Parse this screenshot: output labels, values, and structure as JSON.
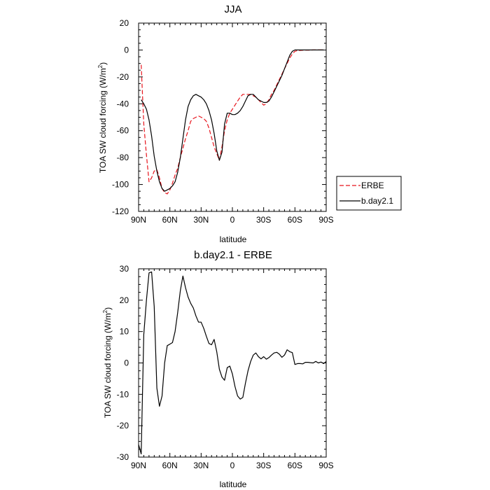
{
  "chart_data": [
    {
      "type": "line",
      "title": "JJA",
      "xlabel": "latitude",
      "ylabel": "TOA SW cloud forcing (W/m",
      "ylabel_sup": "2",
      "ylabel_end": ")",
      "xlim": [
        90,
        -90
      ],
      "ylim": [
        -120,
        20
      ],
      "xticks": [
        90,
        60,
        30,
        0,
        -30,
        -60,
        -90
      ],
      "xtick_labels": [
        "90N",
        "60N",
        "30N",
        "0",
        "30S",
        "60S",
        "90S"
      ],
      "yticks": [
        20,
        0,
        -20,
        -40,
        -60,
        -80,
        -100,
        -120
      ],
      "ytick_labels": [
        "20",
        "0",
        "-20",
        "-40",
        "-60",
        "-80",
        "-100",
        "-120"
      ],
      "legend": {
        "placement": "outside-right",
        "entries": [
          "ERBE",
          "b.day2.1"
        ]
      },
      "series": [
        {
          "name": "ERBE",
          "color": "#e8141c",
          "dash": "dashed",
          "x": [
            87.5,
            85,
            82.5,
            80,
            77.5,
            75,
            72.5,
            70,
            67.5,
            65,
            62.5,
            60,
            57.5,
            55,
            52.5,
            50,
            47.5,
            45,
            42.5,
            40,
            37.5,
            35,
            32.5,
            30,
            27.5,
            25,
            22.5,
            20,
            17.5,
            15,
            12.5,
            10,
            7.5,
            5,
            2.5,
            0,
            -2.5,
            -5,
            -7.5,
            -10,
            -12.5,
            -15,
            -17.5,
            -20,
            -22.5,
            -25,
            -27.5,
            -30,
            -32.5,
            -35,
            -37.5,
            -40,
            -42.5,
            -45,
            -47.5,
            -50,
            -52.5,
            -55,
            -57.5,
            -60,
            -62.5,
            -65,
            -67.5,
            -70,
            -72.5,
            -75,
            -77.5,
            -80,
            -82.5,
            -85,
            -87.5
          ],
          "y": [
            -11,
            -55,
            -78,
            -98,
            -95,
            -90,
            -89,
            -95,
            -103,
            -106,
            -107,
            -104,
            -99,
            -93,
            -88,
            -80,
            -73,
            -66,
            -60,
            -53,
            -51,
            -50,
            -49,
            -50,
            -51,
            -53,
            -58,
            -65,
            -72,
            -77,
            -82,
            -72,
            -60,
            -52,
            -47,
            -44,
            -41,
            -38,
            -35,
            -33,
            -33,
            -33,
            -33,
            -34,
            -35,
            -37,
            -39,
            -41,
            -40,
            -37,
            -33,
            -30,
            -26,
            -22,
            -18,
            -14,
            -10,
            -6,
            -3,
            -1,
            -0.5,
            -0.3,
            -0.2,
            -0.1,
            -0.1,
            -0.1,
            0,
            0,
            0,
            0,
            0
          ]
        },
        {
          "name": "b.day2.1",
          "color": "#000000",
          "dash": "solid",
          "x": [
            87.5,
            85,
            82.5,
            80,
            77.5,
            75,
            72.5,
            70,
            67.5,
            65,
            62.5,
            60,
            57.5,
            55,
            52.5,
            50,
            47.5,
            45,
            42.5,
            40,
            37.5,
            35,
            32.5,
            30,
            27.5,
            25,
            22.5,
            20,
            17.5,
            15,
            12.5,
            10,
            7.5,
            5,
            2.5,
            0,
            -2.5,
            -5,
            -7.5,
            -10,
            -12.5,
            -15,
            -17.5,
            -20,
            -22.5,
            -25,
            -27.5,
            -30,
            -32.5,
            -35,
            -37.5,
            -40,
            -42.5,
            -45,
            -47.5,
            -50,
            -52.5,
            -55,
            -57.5,
            -60,
            -62.5,
            -65,
            -67.5,
            -70,
            -72.5,
            -75,
            -77.5,
            -80,
            -82.5,
            -85,
            -87.5
          ],
          "y": [
            -37,
            -40,
            -44,
            -52,
            -64,
            -79,
            -90,
            -98,
            -103,
            -105,
            -104,
            -103,
            -101,
            -98,
            -91,
            -80,
            -66,
            -52,
            -42,
            -37,
            -34,
            -33,
            -34,
            -35,
            -37,
            -40,
            -45,
            -52,
            -62,
            -75,
            -82,
            -76,
            -55,
            -47,
            -47,
            -48,
            -48,
            -47,
            -45,
            -42,
            -38,
            -34,
            -33,
            -33,
            -35,
            -37,
            -38,
            -39,
            -39,
            -38,
            -35,
            -31,
            -27,
            -23,
            -19,
            -14,
            -9,
            -4,
            -1,
            0,
            0,
            0,
            0,
            0,
            0,
            0,
            0,
            0,
            0,
            0,
            0
          ]
        }
      ]
    },
    {
      "type": "line",
      "title": "b.day2.1 - ERBE",
      "xlabel": "latitude",
      "ylabel": "TOA SW cloud forcing (W/m",
      "ylabel_sup": "2",
      "ylabel_end": ")",
      "xlim": [
        90,
        -90
      ],
      "ylim": [
        -30,
        30
      ],
      "xticks": [
        90,
        60,
        30,
        0,
        -30,
        -60,
        -90
      ],
      "xtick_labels": [
        "90N",
        "60N",
        "30N",
        "0",
        "30S",
        "60S",
        "90S"
      ],
      "yticks": [
        30,
        20,
        10,
        0,
        -10,
        -20,
        -30
      ],
      "ytick_labels": [
        "30",
        "20",
        "10",
        "0",
        "-10",
        "-20",
        "-30"
      ],
      "series": [
        {
          "color": "#000000",
          "dash": "solid",
          "x": [
            90,
            87.5,
            85,
            82.5,
            80,
            77.5,
            75,
            72.5,
            70,
            67.5,
            65,
            62.5,
            60,
            57.5,
            55,
            52.5,
            50,
            47.5,
            45,
            42.5,
            40,
            37.5,
            35,
            32.5,
            30,
            27.5,
            25,
            22.5,
            20,
            17.5,
            15,
            12.5,
            10,
            7.5,
            5,
            2.5,
            0,
            -2.5,
            -5,
            -7.5,
            -10,
            -12.5,
            -15,
            -17.5,
            -20,
            -22.5,
            -25,
            -27.5,
            -30,
            -32.5,
            -35,
            -37.5,
            -40,
            -42.5,
            -45,
            -47.5,
            -50,
            -52.5,
            -55,
            -57.5,
            -60,
            -62.5,
            -65,
            -67.5,
            -70,
            -72.5,
            -75,
            -77.5,
            -80,
            -82.5,
            -85,
            -87.5,
            -90
          ],
          "y": [
            -26,
            -29,
            9,
            20,
            28.7,
            29,
            18,
            -8,
            -13.8,
            -10.5,
            0,
            5.5,
            6,
            6.5,
            10,
            16,
            23,
            27.7,
            24,
            21,
            19,
            17.5,
            15,
            13,
            13,
            11,
            8.5,
            6.2,
            5.8,
            7.5,
            3.5,
            -2,
            -4.5,
            -5.5,
            -1.5,
            -1,
            -3.5,
            -7.5,
            -10.5,
            -11.5,
            -11,
            -6.5,
            -2.5,
            0.5,
            2.5,
            3.2,
            2,
            1.3,
            2,
            1.2,
            1.7,
            2.5,
            3.2,
            3.4,
            2.8,
            1.8,
            2.5,
            4.2,
            3.6,
            3.3,
            -0.5,
            -0.2,
            -0.2,
            -0.3,
            0.2,
            0.2,
            0.1,
            0,
            0.5,
            0,
            0.3,
            -0.2,
            0.5
          ]
        }
      ]
    }
  ]
}
